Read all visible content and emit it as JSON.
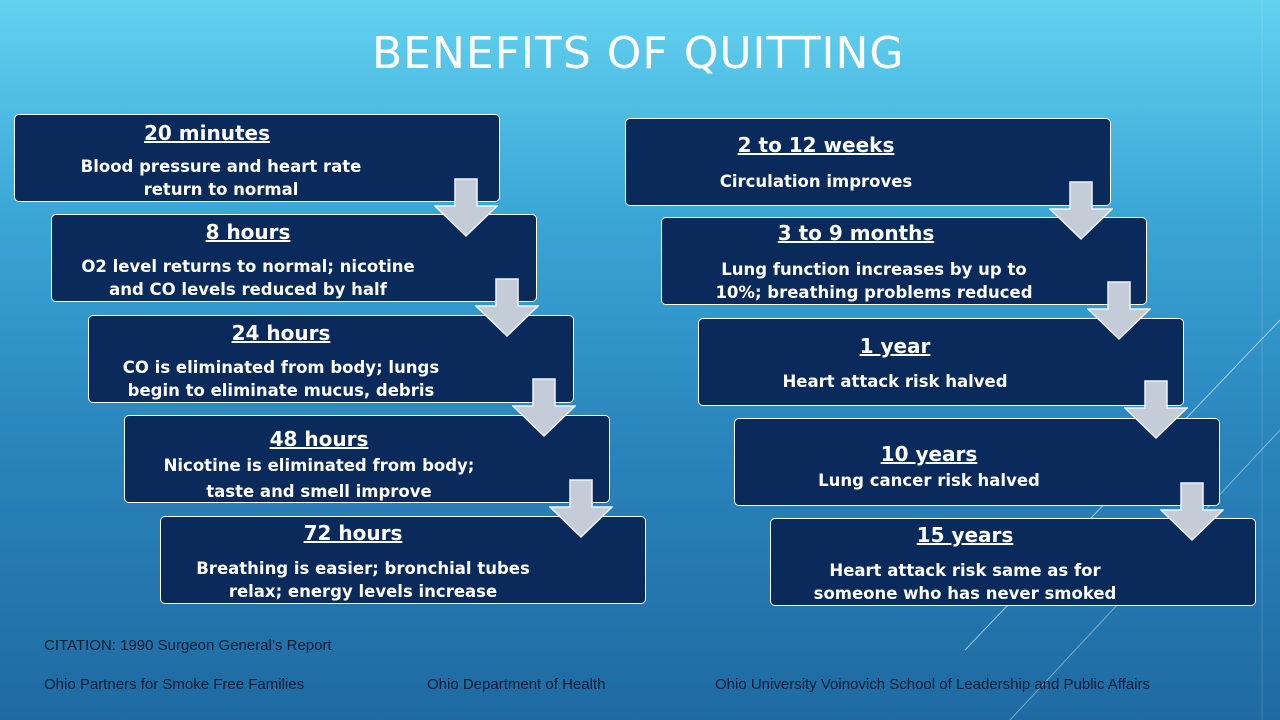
{
  "title": "BENEFITS OF QUITTING",
  "left_column": [
    {
      "time": "20 minutes",
      "line1": "Blood pressure and heart rate",
      "line2": "return to normal"
    },
    {
      "time": "8 hours",
      "line1": "O2 level returns to normal; nicotine",
      "line2": "and CO levels reduced by half"
    },
    {
      "time": "24 hours",
      "line1": "CO is eliminated from body; lungs",
      "line2": "begin to eliminate mucus, debris"
    },
    {
      "time": "48 hours",
      "line1": "Nicotine is eliminated from body;",
      "line2": "taste and smell improve"
    },
    {
      "time": "72 hours",
      "line1": "Breathing is easier; bronchial tubes",
      "line2": "relax; energy levels increase"
    }
  ],
  "right_column": [
    {
      "time": "2 to 12 weeks",
      "line1": "Circulation improves",
      "line2": ""
    },
    {
      "time": "3 to 9 months",
      "line1": "Lung function increases by up to",
      "line2": "10%; breathing problems reduced"
    },
    {
      "time": "1 year",
      "line1": "Heart attack risk halved",
      "line2": ""
    },
    {
      "time": "10 years",
      "line1": "Lung cancer risk halved",
      "line2": ""
    },
    {
      "time": "15 years",
      "line1": "Heart attack risk same as for",
      "line2": "someone who has never smoked"
    }
  ],
  "footer": {
    "citation": "CITATION:  1990 Surgeon General’s Report",
    "org1": "Ohio Partners for Smoke Free Families",
    "org2": "Ohio Department of Health",
    "org3": "Ohio University Voinovich School of Leadership and Public Affairs"
  },
  "colors": {
    "box_fill": "#0b2a5c",
    "arrow_fill": "#c4ccd8"
  }
}
